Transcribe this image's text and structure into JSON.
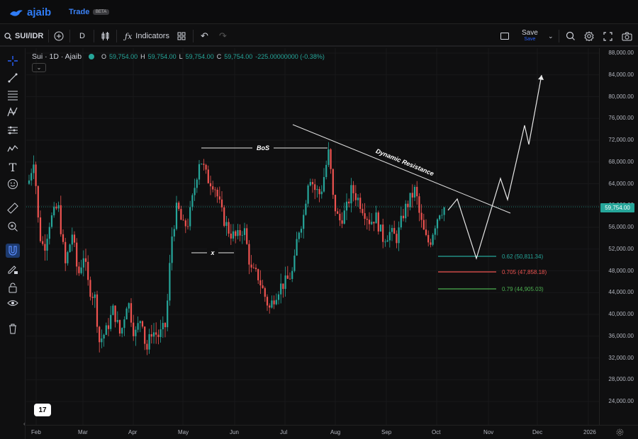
{
  "app": {
    "brand": "ajaib",
    "nav_trade": "Trade",
    "beta": "BETA"
  },
  "toolbar": {
    "symbol": "SUI/IDR",
    "interval": "D",
    "indicators": "Indicators",
    "save_label": "Save",
    "save_sub": "Save"
  },
  "legend": {
    "title": "Sui · 1D · Ajaib",
    "o_label": "O",
    "o_val": "59,754.00",
    "h_label": "H",
    "h_val": "59,754.00",
    "l_label": "L",
    "l_val": "59,754.00",
    "c_label": "C",
    "c_val": "59,754.00",
    "change": "-225.00000000 (-0.38%)"
  },
  "price_axis": [
    "88,000.00",
    "84,000.00",
    "80,000.00",
    "76,000.00",
    "72,000.00",
    "68,000.00",
    "64,000.00",
    "60,000.00",
    "56,000.00",
    "52,000.00",
    "48,000.00",
    "44,000.00",
    "40,000.00",
    "36,000.00",
    "32,000.00",
    "28,000.00",
    "24,000.00"
  ],
  "last_price": "59,754.00",
  "time_axis": [
    "Feb",
    "Mar",
    "Apr",
    "May",
    "Jun",
    "Jul",
    "Aug",
    "Sep",
    "Oct",
    "Nov",
    "Dec",
    "2026"
  ],
  "annotations": {
    "bos": "BoS",
    "x": "x",
    "dynamic_resistance": "Dynamic Resistance",
    "fib_062": "0.62 (50,811.34)",
    "fib_0705": "0.705 (47,858.18)",
    "fib_079": "0.79 (44,905.03)"
  },
  "colors": {
    "up": "#26a69a",
    "down": "#ef5350",
    "accent": "#2962ff",
    "fib1": "#26a69a",
    "fib2": "#ef5350",
    "fib3": "#4caf50"
  },
  "tv_logo": "17"
}
